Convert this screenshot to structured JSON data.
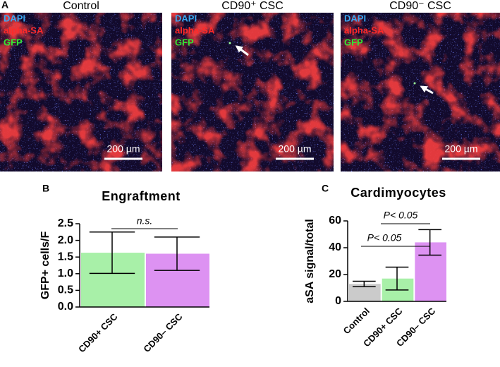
{
  "panel_a": {
    "label": "A",
    "images": [
      {
        "title": "Control",
        "legend": [
          "DAPI",
          "alpha-SA",
          "GFP"
        ],
        "scale_bar": "200 µm"
      },
      {
        "title": "CD90⁺ CSC",
        "legend": [
          "DAPI",
          "alpha-SA",
          "GFP"
        ],
        "scale_bar": "200 µm"
      },
      {
        "title": "CD90⁻ CSC",
        "legend": [
          "DAPI",
          "alpha-SA",
          "GFP"
        ],
        "scale_bar": "200 µm"
      }
    ]
  },
  "chart_data": [
    {
      "type": "bar",
      "panel": "B",
      "title": "Engraftment",
      "ylabel": "GFP+ cells/F",
      "categories": [
        "CD90+ CSC",
        "CD90– CSC"
      ],
      "values": [
        1.63,
        1.6
      ],
      "errors": [
        0.62,
        0.5
      ],
      "colors": [
        "#a8f0a8",
        "#dd92f2"
      ],
      "ylim": [
        0,
        2.5
      ],
      "yticks": [
        {
          "value": 0,
          "label": "0.0"
        },
        0.5,
        {
          "value": 1,
          "label": "1.0"
        },
        1.5,
        {
          "value": 2,
          "label": "2.0"
        },
        2.5
      ],
      "annotations": [
        "n.s."
      ]
    },
    {
      "type": "bar",
      "panel": "C",
      "title": "Cardimyocytes",
      "ylabel": "aSA signal/total",
      "categories": [
        "Control",
        "CD90+ CSC",
        "CD90– CSC"
      ],
      "values": [
        13,
        17,
        44
      ],
      "errors": [
        2,
        8.5,
        9.5
      ],
      "colors": [
        "#cbcbcb",
        "#a8f0a8",
        "#dd92f2"
      ],
      "ylim": [
        0,
        60
      ],
      "yticks": [
        0,
        20,
        40,
        60
      ],
      "annotations": [
        "P< 0.05",
        "P< 0.05"
      ]
    }
  ]
}
